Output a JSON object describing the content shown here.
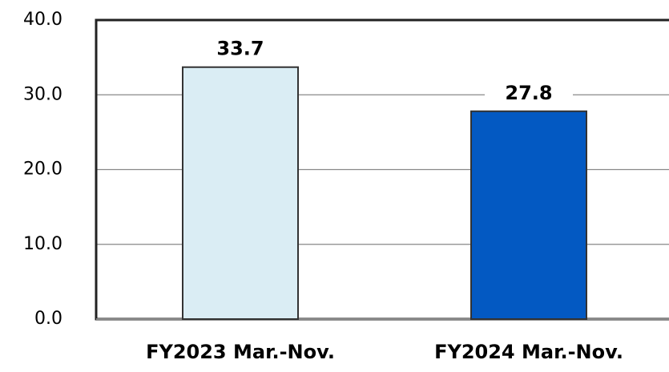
{
  "chart_data": {
    "type": "bar",
    "categories": [
      "FY2023 Mar.-Nov.",
      "FY2024 Mar.-Nov."
    ],
    "values": [
      33.7,
      27.8
    ],
    "colors": [
      "#daedf4",
      "#0359c2"
    ],
    "ylim": [
      0,
      40
    ],
    "yticks": [
      {
        "value": 0,
        "label": "0.0"
      },
      {
        "value": 10,
        "label": "10.0"
      },
      {
        "value": 20,
        "label": "20.0"
      },
      {
        "value": 30,
        "label": "30.0"
      },
      {
        "value": 40,
        "label": "40.0"
      }
    ],
    "grid": true
  }
}
